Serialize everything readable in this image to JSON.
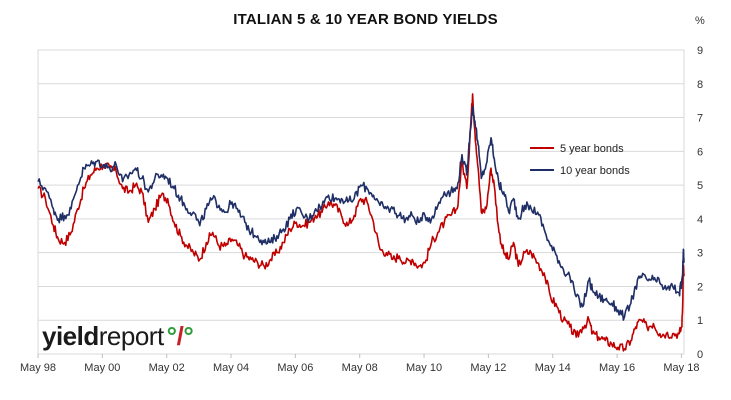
{
  "chart_data": {
    "type": "line",
    "title": "ITALIAN 5 & 10 YEAR BOND YIELDS",
    "ylabel": "%",
    "ylim": [
      0,
      9
    ],
    "yticks": [
      0,
      1,
      2,
      3,
      4,
      5,
      6,
      7,
      8,
      9
    ],
    "xlim": [
      1998.37,
      2018.45
    ],
    "xticks": [
      {
        "x": 1998.37,
        "label": "May 98"
      },
      {
        "x": 2000.37,
        "label": "May 00"
      },
      {
        "x": 2002.37,
        "label": "May 02"
      },
      {
        "x": 2004.37,
        "label": "May 04"
      },
      {
        "x": 2006.37,
        "label": "May 06"
      },
      {
        "x": 2008.37,
        "label": "May 08"
      },
      {
        "x": 2010.37,
        "label": "May 10"
      },
      {
        "x": 2012.37,
        "label": "May 12"
      },
      {
        "x": 2014.37,
        "label": "May 14"
      },
      {
        "x": 2016.37,
        "label": "May 16"
      },
      {
        "x": 2018.37,
        "label": "May 18"
      }
    ],
    "grid": true,
    "legend_position": "right-middle",
    "series": [
      {
        "name": "5 year bonds",
        "color": "#c00000",
        "points": [
          [
            1998.37,
            4.9
          ],
          [
            1998.6,
            4.6
          ],
          [
            1998.85,
            3.8
          ],
          [
            1999.0,
            3.4
          ],
          [
            1999.2,
            3.3
          ],
          [
            1999.4,
            3.6
          ],
          [
            1999.6,
            4.3
          ],
          [
            1999.8,
            4.9
          ],
          [
            2000.0,
            5.3
          ],
          [
            2000.2,
            5.5
          ],
          [
            2000.4,
            5.6
          ],
          [
            2000.6,
            5.5
          ],
          [
            2000.8,
            5.4
          ],
          [
            2001.0,
            4.9
          ],
          [
            2001.2,
            4.8
          ],
          [
            2001.4,
            5.0
          ],
          [
            2001.6,
            4.8
          ],
          [
            2001.8,
            3.9
          ],
          [
            2002.0,
            4.3
          ],
          [
            2002.2,
            4.7
          ],
          [
            2002.4,
            4.6
          ],
          [
            2002.6,
            3.9
          ],
          [
            2002.8,
            3.5
          ],
          [
            2003.0,
            3.2
          ],
          [
            2003.2,
            3.0
          ],
          [
            2003.4,
            2.8
          ],
          [
            2003.6,
            3.3
          ],
          [
            2003.8,
            3.6
          ],
          [
            2004.0,
            3.2
          ],
          [
            2004.2,
            3.2
          ],
          [
            2004.4,
            3.4
          ],
          [
            2004.6,
            3.2
          ],
          [
            2004.8,
            2.9
          ],
          [
            2005.0,
            2.8
          ],
          [
            2005.2,
            2.7
          ],
          [
            2005.4,
            2.6
          ],
          [
            2005.6,
            2.8
          ],
          [
            2005.8,
            3.0
          ],
          [
            2006.0,
            3.3
          ],
          [
            2006.2,
            3.7
          ],
          [
            2006.4,
            3.9
          ],
          [
            2006.6,
            3.8
          ],
          [
            2006.8,
            3.9
          ],
          [
            2007.0,
            4.1
          ],
          [
            2007.2,
            4.2
          ],
          [
            2007.4,
            4.5
          ],
          [
            2007.6,
            4.4
          ],
          [
            2007.8,
            4.1
          ],
          [
            2008.0,
            3.8
          ],
          [
            2008.2,
            4.1
          ],
          [
            2008.4,
            4.6
          ],
          [
            2008.6,
            4.5
          ],
          [
            2008.8,
            3.9
          ],
          [
            2009.0,
            3.1
          ],
          [
            2009.2,
            3.0
          ],
          [
            2009.4,
            2.8
          ],
          [
            2009.6,
            2.9
          ],
          [
            2009.8,
            2.7
          ],
          [
            2010.0,
            2.8
          ],
          [
            2010.2,
            2.6
          ],
          [
            2010.4,
            2.7
          ],
          [
            2010.6,
            3.3
          ],
          [
            2010.8,
            3.6
          ],
          [
            2011.0,
            3.9
          ],
          [
            2011.2,
            4.1
          ],
          [
            2011.4,
            4.3
          ],
          [
            2011.55,
            5.7
          ],
          [
            2011.7,
            4.9
          ],
          [
            2011.8,
            6.5
          ],
          [
            2011.88,
            7.7
          ],
          [
            2011.95,
            6.6
          ],
          [
            2012.05,
            5.5
          ],
          [
            2012.15,
            4.2
          ],
          [
            2012.3,
            4.3
          ],
          [
            2012.45,
            5.5
          ],
          [
            2012.55,
            5.0
          ],
          [
            2012.7,
            3.6
          ],
          [
            2012.85,
            3.0
          ],
          [
            2013.0,
            2.8
          ],
          [
            2013.15,
            3.3
          ],
          [
            2013.3,
            2.6
          ],
          [
            2013.5,
            3.0
          ],
          [
            2013.7,
            3.0
          ],
          [
            2013.9,
            2.7
          ],
          [
            2014.1,
            2.4
          ],
          [
            2014.3,
            1.7
          ],
          [
            2014.5,
            1.4
          ],
          [
            2014.7,
            1.0
          ],
          [
            2014.9,
            0.8
          ],
          [
            2015.1,
            0.5
          ],
          [
            2015.3,
            0.8
          ],
          [
            2015.5,
            1.0
          ],
          [
            2015.6,
            0.6
          ],
          [
            2015.8,
            0.5
          ],
          [
            2016.0,
            0.4
          ],
          [
            2016.2,
            0.3
          ],
          [
            2016.4,
            0.2
          ],
          [
            2016.6,
            0.15
          ],
          [
            2016.8,
            0.4
          ],
          [
            2016.95,
            0.8
          ],
          [
            2017.1,
            1.0
          ],
          [
            2017.3,
            0.8
          ],
          [
            2017.5,
            0.9
          ],
          [
            2017.7,
            0.6
          ],
          [
            2017.9,
            0.6
          ],
          [
            2018.1,
            0.6
          ],
          [
            2018.3,
            0.6
          ],
          [
            2018.38,
            0.8
          ],
          [
            2018.41,
            1.5
          ],
          [
            2018.43,
            2.6
          ],
          [
            2018.45,
            2.3
          ]
        ]
      },
      {
        "name": "10 year bonds",
        "color": "#1f2f66",
        "points": [
          [
            1998.37,
            5.1
          ],
          [
            1998.6,
            4.9
          ],
          [
            1998.85,
            4.3
          ],
          [
            1999.0,
            4.0
          ],
          [
            1999.2,
            4.1
          ],
          [
            1999.4,
            4.3
          ],
          [
            1999.6,
            5.0
          ],
          [
            1999.8,
            5.5
          ],
          [
            2000.0,
            5.6
          ],
          [
            2000.2,
            5.7
          ],
          [
            2000.4,
            5.6
          ],
          [
            2000.6,
            5.5
          ],
          [
            2000.8,
            5.6
          ],
          [
            2001.0,
            5.1
          ],
          [
            2001.2,
            5.3
          ],
          [
            2001.4,
            5.5
          ],
          [
            2001.6,
            5.2
          ],
          [
            2001.8,
            4.8
          ],
          [
            2002.0,
            5.2
          ],
          [
            2002.2,
            5.3
          ],
          [
            2002.4,
            5.2
          ],
          [
            2002.6,
            4.9
          ],
          [
            2002.8,
            4.6
          ],
          [
            2003.0,
            4.3
          ],
          [
            2003.2,
            4.2
          ],
          [
            2003.4,
            3.8
          ],
          [
            2003.6,
            4.3
          ],
          [
            2003.8,
            4.6
          ],
          [
            2004.0,
            4.4
          ],
          [
            2004.2,
            4.2
          ],
          [
            2004.4,
            4.5
          ],
          [
            2004.6,
            4.2
          ],
          [
            2004.8,
            3.9
          ],
          [
            2005.0,
            3.6
          ],
          [
            2005.2,
            3.5
          ],
          [
            2005.4,
            3.3
          ],
          [
            2005.6,
            3.3
          ],
          [
            2005.8,
            3.5
          ],
          [
            2006.0,
            3.7
          ],
          [
            2006.2,
            4.0
          ],
          [
            2006.4,
            4.3
          ],
          [
            2006.6,
            4.1
          ],
          [
            2006.8,
            4.0
          ],
          [
            2007.0,
            4.3
          ],
          [
            2007.2,
            4.4
          ],
          [
            2007.4,
            4.7
          ],
          [
            2007.6,
            4.6
          ],
          [
            2007.8,
            4.6
          ],
          [
            2008.0,
            4.5
          ],
          [
            2008.2,
            4.6
          ],
          [
            2008.4,
            5.0
          ],
          [
            2008.6,
            4.9
          ],
          [
            2008.8,
            4.7
          ],
          [
            2009.0,
            4.4
          ],
          [
            2009.2,
            4.3
          ],
          [
            2009.4,
            4.3
          ],
          [
            2009.6,
            4.1
          ],
          [
            2009.8,
            4.0
          ],
          [
            2010.0,
            4.1
          ],
          [
            2010.2,
            3.9
          ],
          [
            2010.4,
            4.1
          ],
          [
            2010.6,
            4.0
          ],
          [
            2010.8,
            4.4
          ],
          [
            2011.0,
            4.8
          ],
          [
            2011.2,
            4.8
          ],
          [
            2011.4,
            4.9
          ],
          [
            2011.55,
            5.9
          ],
          [
            2011.7,
            5.3
          ],
          [
            2011.8,
            6.6
          ],
          [
            2011.88,
            7.3
          ],
          [
            2011.95,
            6.9
          ],
          [
            2012.05,
            6.2
          ],
          [
            2012.15,
            5.2
          ],
          [
            2012.3,
            5.6
          ],
          [
            2012.45,
            6.4
          ],
          [
            2012.55,
            5.8
          ],
          [
            2012.7,
            5.0
          ],
          [
            2012.85,
            4.8
          ],
          [
            2013.0,
            4.2
          ],
          [
            2013.15,
            4.6
          ],
          [
            2013.3,
            4.0
          ],
          [
            2013.5,
            4.4
          ],
          [
            2013.7,
            4.3
          ],
          [
            2013.9,
            4.2
          ],
          [
            2014.1,
            3.7
          ],
          [
            2014.3,
            3.2
          ],
          [
            2014.5,
            2.9
          ],
          [
            2014.7,
            2.5
          ],
          [
            2014.9,
            2.3
          ],
          [
            2015.1,
            1.7
          ],
          [
            2015.3,
            1.4
          ],
          [
            2015.5,
            2.2
          ],
          [
            2015.6,
            1.9
          ],
          [
            2015.8,
            1.7
          ],
          [
            2016.0,
            1.6
          ],
          [
            2016.2,
            1.5
          ],
          [
            2016.4,
            1.3
          ],
          [
            2016.6,
            1.1
          ],
          [
            2016.8,
            1.5
          ],
          [
            2016.95,
            2.0
          ],
          [
            2017.1,
            2.3
          ],
          [
            2017.3,
            2.2
          ],
          [
            2017.5,
            2.2
          ],
          [
            2017.7,
            2.1
          ],
          [
            2017.9,
            1.9
          ],
          [
            2018.1,
            2.0
          ],
          [
            2018.3,
            1.8
          ],
          [
            2018.38,
            2.1
          ],
          [
            2018.41,
            2.4
          ],
          [
            2018.43,
            3.1
          ],
          [
            2018.45,
            2.7
          ]
        ]
      }
    ]
  },
  "logo": {
    "text_bold": "yield",
    "text_regular": "report",
    "symbol": "%"
  }
}
